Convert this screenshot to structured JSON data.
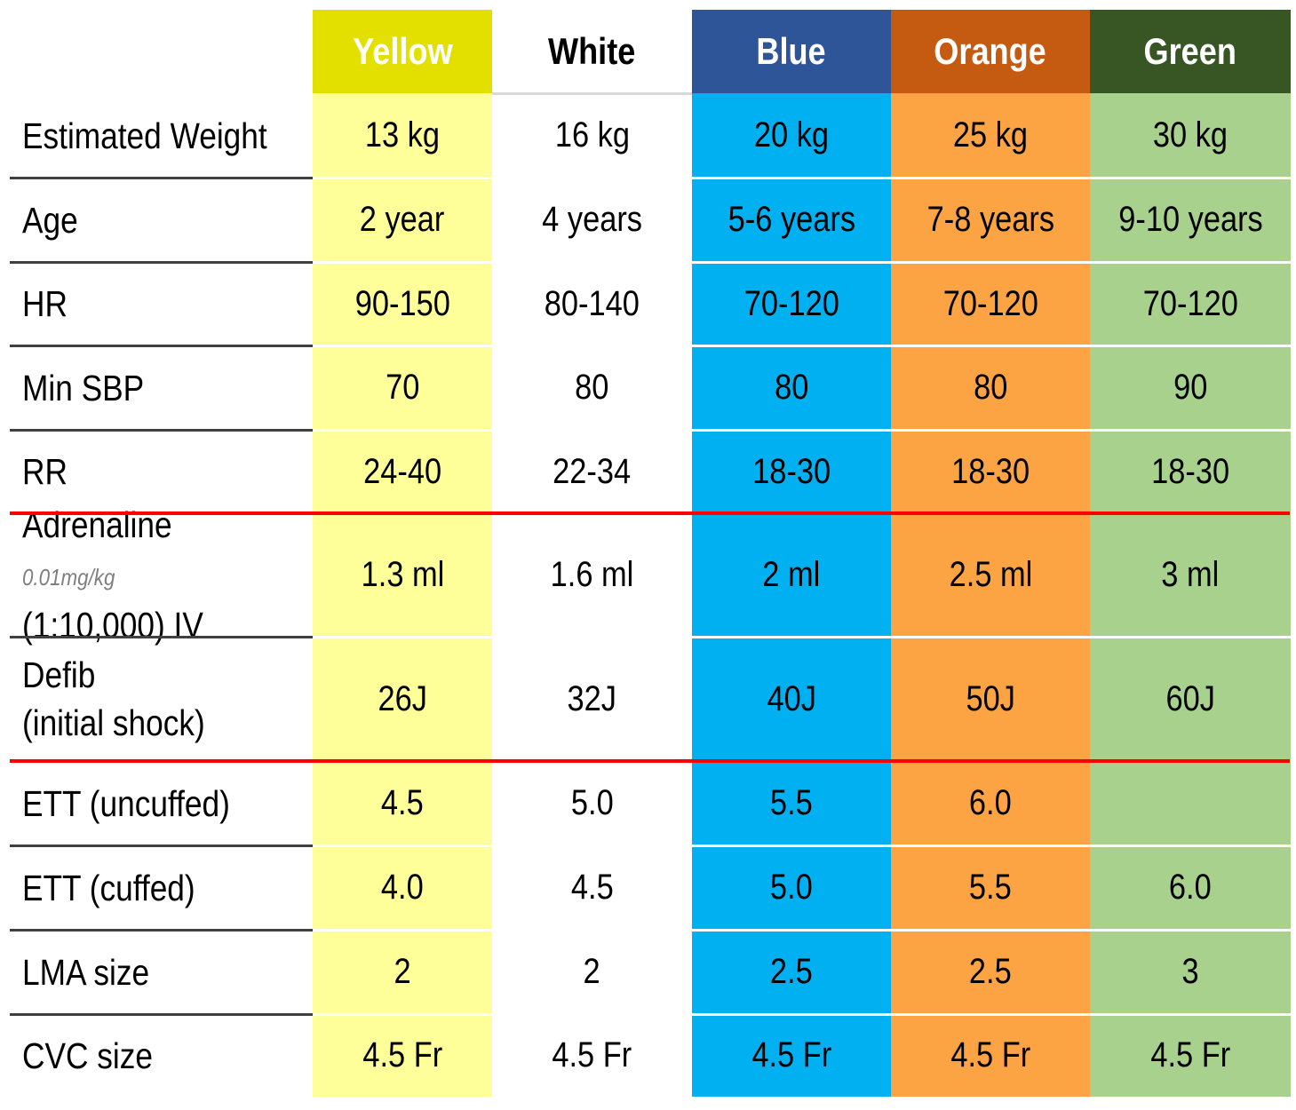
{
  "columns": [
    {
      "name": "Yellow",
      "header_bg": "#e3e000",
      "header_fg": "#ffffff",
      "cell_bg": "#ffff99"
    },
    {
      "name": "White",
      "header_bg": "#ffffff",
      "header_fg": "#000000",
      "cell_bg": "#ffffff"
    },
    {
      "name": "Blue",
      "header_bg": "#2e5597",
      "header_fg": "#ffffff",
      "cell_bg": "#00b0f0"
    },
    {
      "name": "Orange",
      "header_bg": "#c55a11",
      "header_fg": "#ffffff",
      "cell_bg": "#fca444"
    },
    {
      "name": "Green",
      "header_bg": "#375623",
      "header_fg": "#ffffff",
      "cell_bg": "#a9d18e"
    }
  ],
  "rows": [
    {
      "label": "Estimated Weight",
      "values": [
        "13 kg",
        "16 kg",
        "20 kg",
        "25 kg",
        "30 kg"
      ]
    },
    {
      "label": "Age",
      "values": [
        "2 year",
        "4 years",
        "5-6 years",
        "7-8 years",
        "9-10 years"
      ]
    },
    {
      "label": "HR",
      "values": [
        "90-150",
        "80-140",
        "70-120",
        "70-120",
        "70-120"
      ]
    },
    {
      "label": "Min SBP",
      "values": [
        "70",
        "80",
        "80",
        "80",
        "90"
      ]
    },
    {
      "label": "RR",
      "values": [
        "24-40",
        "22-34",
        "18-30",
        "18-30",
        "18-30"
      ]
    },
    {
      "label": "Adrenaline",
      "dose": "0.01mg/kg",
      "label_line2": "(1:10,000) IV",
      "values": [
        "1.3 ml",
        "1.6 ml",
        "2 ml",
        "2.5 ml",
        "3 ml"
      ]
    },
    {
      "label": "Defib",
      "label_line2": "(initial shock)",
      "values": [
        "26J",
        "32J",
        "40J",
        "50J",
        "60J"
      ]
    },
    {
      "label": "ETT (uncuffed)",
      "values": [
        "4.5",
        "5.0",
        "5.5",
        "6.0",
        ""
      ]
    },
    {
      "label": "ETT (cuffed)",
      "values": [
        "4.0",
        "4.5",
        "5.0",
        "5.5",
        "6.0"
      ]
    },
    {
      "label": "LMA size",
      "values": [
        "2",
        "2",
        "2.5",
        "2.5",
        "3"
      ]
    },
    {
      "label": "CVC size",
      "values": [
        "4.5 Fr",
        "4.5 Fr",
        "4.5 Fr",
        "4.5 Fr",
        "4.5 Fr"
      ]
    }
  ],
  "colors": {
    "separator_red": "#ff0000",
    "separator_label": "#404040",
    "separator_white": "#ffffff"
  }
}
